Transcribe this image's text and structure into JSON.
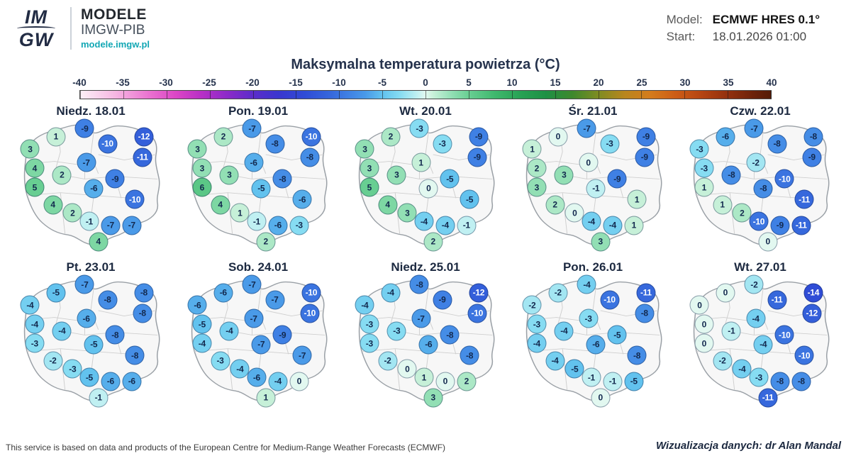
{
  "header": {
    "logo_top": "IM",
    "logo_bottom": "GW",
    "brand_title": "MODELE",
    "brand_subtitle": "IMGW-PIB",
    "brand_url": "modele.imgw.pl",
    "model_label": "Model:",
    "model_value": "ECMWF HRES 0.1°",
    "start_label": "Start:",
    "start_value": "18.01.2026 01:00"
  },
  "title": "Maksymalna temperatura powietrza (°C)",
  "colorbar": {
    "unit": "°C",
    "min": -40,
    "max": 40,
    "ticks": [
      "-40",
      "-35",
      "-30",
      "-25",
      "-20",
      "-15",
      "-10",
      "-5",
      "0",
      "5",
      "10",
      "15",
      "20",
      "25",
      "30",
      "35",
      "40"
    ],
    "stops": [
      {
        "t": -40,
        "c": "#fdf0f7"
      },
      {
        "t": -36,
        "c": "#f6b8e2"
      },
      {
        "t": -32,
        "c": "#ea72d0"
      },
      {
        "t": -29,
        "c": "#dc46c6"
      },
      {
        "t": -26,
        "c": "#b830c6"
      },
      {
        "t": -23,
        "c": "#8c2ac8"
      },
      {
        "t": -20,
        "c": "#5c2cca"
      },
      {
        "t": -17,
        "c": "#3a36ce"
      },
      {
        "t": -14,
        "c": "#2f4cd6"
      },
      {
        "t": -11,
        "c": "#3668dc"
      },
      {
        "t": -9,
        "c": "#3f80e4"
      },
      {
        "t": -7,
        "c": "#4a9ae8"
      },
      {
        "t": -5,
        "c": "#62c2ee"
      },
      {
        "t": -3,
        "c": "#86dcf2"
      },
      {
        "t": -1,
        "c": "#c0f0f2"
      },
      {
        "t": 0,
        "c": "#e2f8f0"
      },
      {
        "t": 1,
        "c": "#c6f0d8"
      },
      {
        "t": 3,
        "c": "#92dfb4"
      },
      {
        "t": 5,
        "c": "#68ce92"
      },
      {
        "t": 8,
        "c": "#40b86e"
      },
      {
        "t": 11,
        "c": "#28a254"
      },
      {
        "t": 14,
        "c": "#1e9044"
      },
      {
        "t": 17,
        "c": "#3e882c"
      },
      {
        "t": 20,
        "c": "#7e8c22"
      },
      {
        "t": 23,
        "c": "#b8861e"
      },
      {
        "t": 26,
        "c": "#d47c1c"
      },
      {
        "t": 29,
        "c": "#cc5c16"
      },
      {
        "t": 32,
        "c": "#b44412"
      },
      {
        "t": 35,
        "c": "#92300e"
      },
      {
        "t": 38,
        "c": "#6c220a"
      },
      {
        "t": 40,
        "c": "#541c08"
      }
    ]
  },
  "chart_data": {
    "type": "heatmap",
    "title": "Maksymalna temperatura powietrza (°C)",
    "model": "ECMWF HRES 0.1°",
    "run_start": "18.01.2026 01:00",
    "value_unit": "°C",
    "scale_range": [
      -40,
      40
    ],
    "stations": [
      {
        "x": 27,
        "y": 13
      },
      {
        "x": 46,
        "y": 7
      },
      {
        "x": 61,
        "y": 18
      },
      {
        "x": 85,
        "y": 13
      },
      {
        "x": 84,
        "y": 28
      },
      {
        "x": 10,
        "y": 22
      },
      {
        "x": 47,
        "y": 32
      },
      {
        "x": 13,
        "y": 36
      },
      {
        "x": 31,
        "y": 41
      },
      {
        "x": 66,
        "y": 44
      },
      {
        "x": 52,
        "y": 51
      },
      {
        "x": 13,
        "y": 50
      },
      {
        "x": 79,
        "y": 59
      },
      {
        "x": 25,
        "y": 63
      },
      {
        "x": 38,
        "y": 69
      },
      {
        "x": 49,
        "y": 75
      },
      {
        "x": 63,
        "y": 78
      },
      {
        "x": 77,
        "y": 78
      },
      {
        "x": 55,
        "y": 90
      }
    ],
    "maps": [
      {
        "label": "Niedz. 18.01",
        "values": [
          1,
          -9,
          -10,
          -12,
          -11,
          3,
          -7,
          4,
          2,
          -9,
          -6,
          5,
          -10,
          4,
          2,
          -1,
          -7,
          -7,
          4
        ]
      },
      {
        "label": "Pon. 19.01",
        "values": [
          2,
          -7,
          -8,
          -10,
          -8,
          3,
          -6,
          3,
          3,
          -8,
          -5,
          6,
          -6,
          4,
          1,
          -1,
          -6,
          -3,
          2
        ]
      },
      {
        "label": "Wt. 20.01",
        "values": [
          2,
          -3,
          -3,
          -9,
          -9,
          3,
          1,
          3,
          3,
          -5,
          0,
          5,
          -5,
          4,
          3,
          -4,
          -4,
          -1,
          2
        ]
      },
      {
        "label": "Śr. 21.01",
        "values": [
          0,
          -7,
          -3,
          -9,
          -9,
          1,
          0,
          2,
          3,
          -9,
          -1,
          3,
          1,
          2,
          0,
          -4,
          -4,
          1,
          3
        ]
      },
      {
        "label": "Czw. 22.01",
        "values": [
          -6,
          -7,
          -8,
          -8,
          -9,
          -3,
          -2,
          -3,
          -8,
          -10,
          -8,
          1,
          -11,
          1,
          2,
          -10,
          -9,
          -11,
          0
        ]
      },
      {
        "label": "Pt. 23.01",
        "values": [
          -5,
          -7,
          -8,
          -8,
          -8,
          -4,
          -6,
          -4,
          -4,
          -8,
          -5,
          -3,
          -8,
          -2,
          -3,
          -5,
          -6,
          -6,
          -1
        ]
      },
      {
        "label": "Sob. 24.01",
        "values": [
          -6,
          -7,
          -7,
          -10,
          -10,
          -6,
          -7,
          -5,
          -4,
          -9,
          -7,
          -4,
          -7,
          -3,
          -4,
          -6,
          -4,
          0,
          1
        ]
      },
      {
        "label": "Niedz. 25.01",
        "values": [
          -4,
          -8,
          -9,
          -12,
          -10,
          -4,
          -7,
          -3,
          -3,
          -8,
          -6,
          -3,
          -8,
          -2,
          0,
          1,
          0,
          2,
          3
        ]
      },
      {
        "label": "Pon. 26.01",
        "values": [
          -2,
          -4,
          -10,
          -11,
          -8,
          -2,
          -3,
          -3,
          -4,
          -5,
          -6,
          -4,
          -8,
          -4,
          -5,
          -1,
          -1,
          -5,
          0
        ]
      },
      {
        "label": "Wt. 27.01",
        "values": [
          0,
          -2,
          -11,
          -14,
          -12,
          0,
          -4,
          0,
          -1,
          -10,
          -4,
          0,
          -10,
          -2,
          -4,
          -3,
          -8,
          -8,
          -11
        ]
      }
    ]
  },
  "footer": {
    "note": "This service is based on data and products of the European Centre for Medium-Range Weather Forecasts (ECMWF)",
    "credit": "Wizualizacja danych: dr Alan Mandal"
  }
}
